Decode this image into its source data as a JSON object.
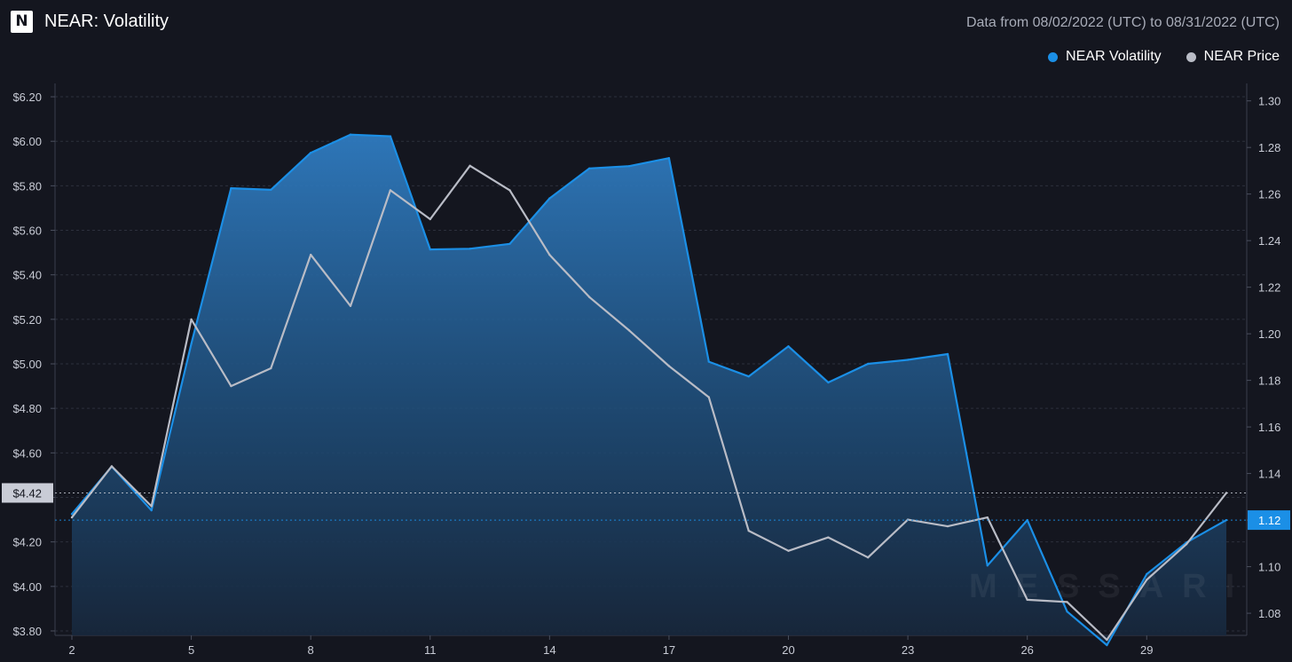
{
  "header": {
    "title": "NEAR: Volatility",
    "date_range": "Data from 08/02/2022 (UTC) to 08/31/2022 (UTC)",
    "logo_letter": "N",
    "logo_icon": "messari-logo-icon"
  },
  "watermark": "MESSARI",
  "legend": [
    {
      "label": "NEAR Volatility",
      "color": "#1b8fe6"
    },
    {
      "label": "NEAR Price",
      "color": "#b9bcc6"
    }
  ],
  "chart_data": {
    "type": "line",
    "x": [
      2,
      3,
      4,
      5,
      6,
      7,
      8,
      9,
      10,
      11,
      12,
      13,
      14,
      15,
      16,
      17,
      18,
      19,
      20,
      21,
      22,
      23,
      24,
      25,
      26,
      27,
      28,
      29,
      30,
      31
    ],
    "x_tick_labels": [
      "2",
      "5",
      "8",
      "11",
      "14",
      "17",
      "20",
      "23",
      "26",
      "29"
    ],
    "series": [
      {
        "name": "NEAR Volatility",
        "axis": "right",
        "color": "#1b8fe6",
        "style": "area",
        "values": [
          1.1226,
          1.143,
          1.1242,
          1.1957,
          1.2625,
          1.2618,
          1.2777,
          1.2855,
          1.2848,
          1.2362,
          1.2365,
          1.2386,
          1.2581,
          1.271,
          1.272,
          1.2754,
          1.188,
          1.1817,
          1.1946,
          1.1791,
          1.1871,
          1.1888,
          1.1913,
          1.1005,
          1.12,
          1.0807,
          1.0663,
          1.0968,
          1.1104,
          1.12
        ]
      },
      {
        "name": "NEAR Price",
        "axis": "left",
        "color": "#b9bcc6",
        "style": "line",
        "values": [
          4.31,
          4.54,
          4.36,
          5.2,
          4.9,
          4.98,
          5.49,
          5.26,
          5.78,
          5.65,
          5.89,
          5.78,
          5.49,
          5.3,
          5.15,
          4.99,
          4.85,
          4.25,
          4.16,
          4.22,
          4.13,
          4.3,
          4.27,
          4.31,
          3.94,
          3.93,
          3.76,
          4.03,
          4.19,
          4.42
        ]
      }
    ],
    "y_left": {
      "ylim": [
        3.78,
        6.26
      ],
      "ticks": [
        "$3.80",
        "$4.00",
        "$4.20",
        "$4.40",
        "$4.60",
        "$4.80",
        "$5.00",
        "$5.20",
        "$5.40",
        "$5.60",
        "$5.80",
        "$6.00",
        "$6.20"
      ]
    },
    "y_right": {
      "ylim": [
        1.0705,
        1.3075
      ],
      "ticks": [
        "1.08",
        "1.10",
        "1.12",
        "1.14",
        "1.16",
        "1.18",
        "1.20",
        "1.22",
        "1.24",
        "1.26",
        "1.28",
        "1.30"
      ]
    },
    "crosshair": {
      "left_label": "$4.42",
      "left_value": 4.42,
      "right_label": "1.12",
      "right_value": 1.12
    },
    "grid": true
  }
}
